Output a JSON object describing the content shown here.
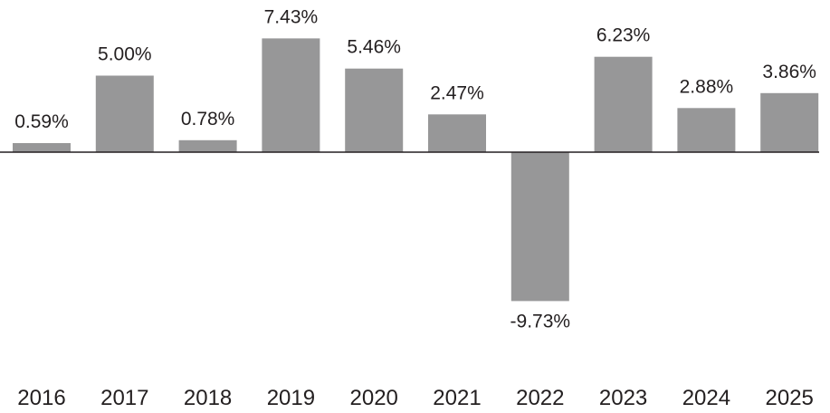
{
  "chart_data": {
    "type": "bar",
    "categories": [
      "2016",
      "2017",
      "2018",
      "2019",
      "2020",
      "2021",
      "2022",
      "2023",
      "2024",
      "2025"
    ],
    "values": [
      0.59,
      5.0,
      0.78,
      7.43,
      5.46,
      2.47,
      -9.73,
      6.23,
      2.88,
      3.86
    ],
    "value_labels": [
      "0.59%",
      "5.00%",
      "0.78%",
      "7.43%",
      "5.46%",
      "2.47%",
      "-9.73%",
      "6.23%",
      "2.88%",
      "3.86%"
    ],
    "title": "",
    "xlabel": "",
    "ylabel": "",
    "ylim": [
      -10,
      8
    ],
    "grid": false,
    "legend": "none",
    "colors": {
      "bar": "#979798",
      "axis": "#231f20",
      "text": "#231f20"
    }
  }
}
